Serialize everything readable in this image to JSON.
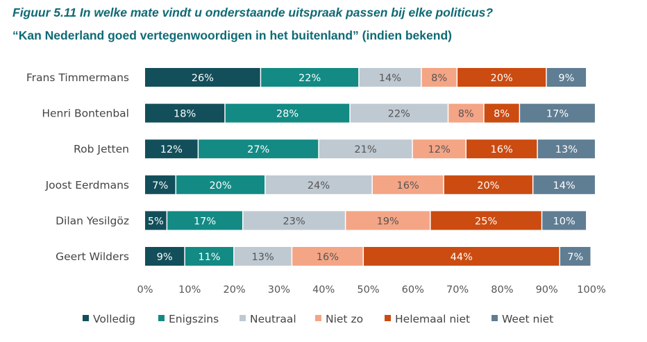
{
  "figure": {
    "title": "Figuur 5.11 In welke mate vindt u onderstaande uitspraak passen bij elke politicus?",
    "subtitle": "“Kan Nederland goed vertegenwoordigen in het buitenland” (indien bekend)"
  },
  "chart_data": {
    "type": "bar",
    "orientation": "horizontal",
    "stacked": true,
    "title": "Figuur 5.11 In welke mate vindt u onderstaande uitspraak passen bij elke politicus?",
    "subtitle": "“Kan Nederland goed vertegenwoordigen in het buitenland” (indien bekend)",
    "categories": [
      "Frans Timmermans",
      "Henri Bontenbal",
      "Rob Jetten",
      "Joost Eerdmans",
      "Dilan Yesilgöz",
      "Geert Wilders"
    ],
    "series": [
      {
        "name": "Volledig",
        "color": "#124f5a",
        "values": [
          26,
          18,
          12,
          7,
          5,
          9
        ]
      },
      {
        "name": "Enigszins",
        "color": "#138a84",
        "values": [
          22,
          28,
          27,
          20,
          17,
          11
        ]
      },
      {
        "name": "Neutraal",
        "color": "#bfc9d1",
        "values": [
          14,
          22,
          21,
          24,
          23,
          13
        ]
      },
      {
        "name": "Niet zo",
        "color": "#f4a585",
        "values": [
          8,
          8,
          12,
          16,
          19,
          16
        ]
      },
      {
        "name": "Helemaal niet",
        "color": "#cb4b11",
        "values": [
          20,
          8,
          16,
          20,
          25,
          44
        ]
      },
      {
        "name": "Weet niet",
        "color": "#5f7d93",
        "values": [
          9,
          17,
          13,
          14,
          10,
          7
        ]
      }
    ],
    "xlim": [
      0,
      100
    ],
    "xticks": [
      "0%",
      "10%",
      "20%",
      "30%",
      "40%",
      "50%",
      "60%",
      "70%",
      "80%",
      "90%",
      "100%"
    ],
    "value_suffix": "%",
    "legend_position": "bottom",
    "grid": false
  }
}
